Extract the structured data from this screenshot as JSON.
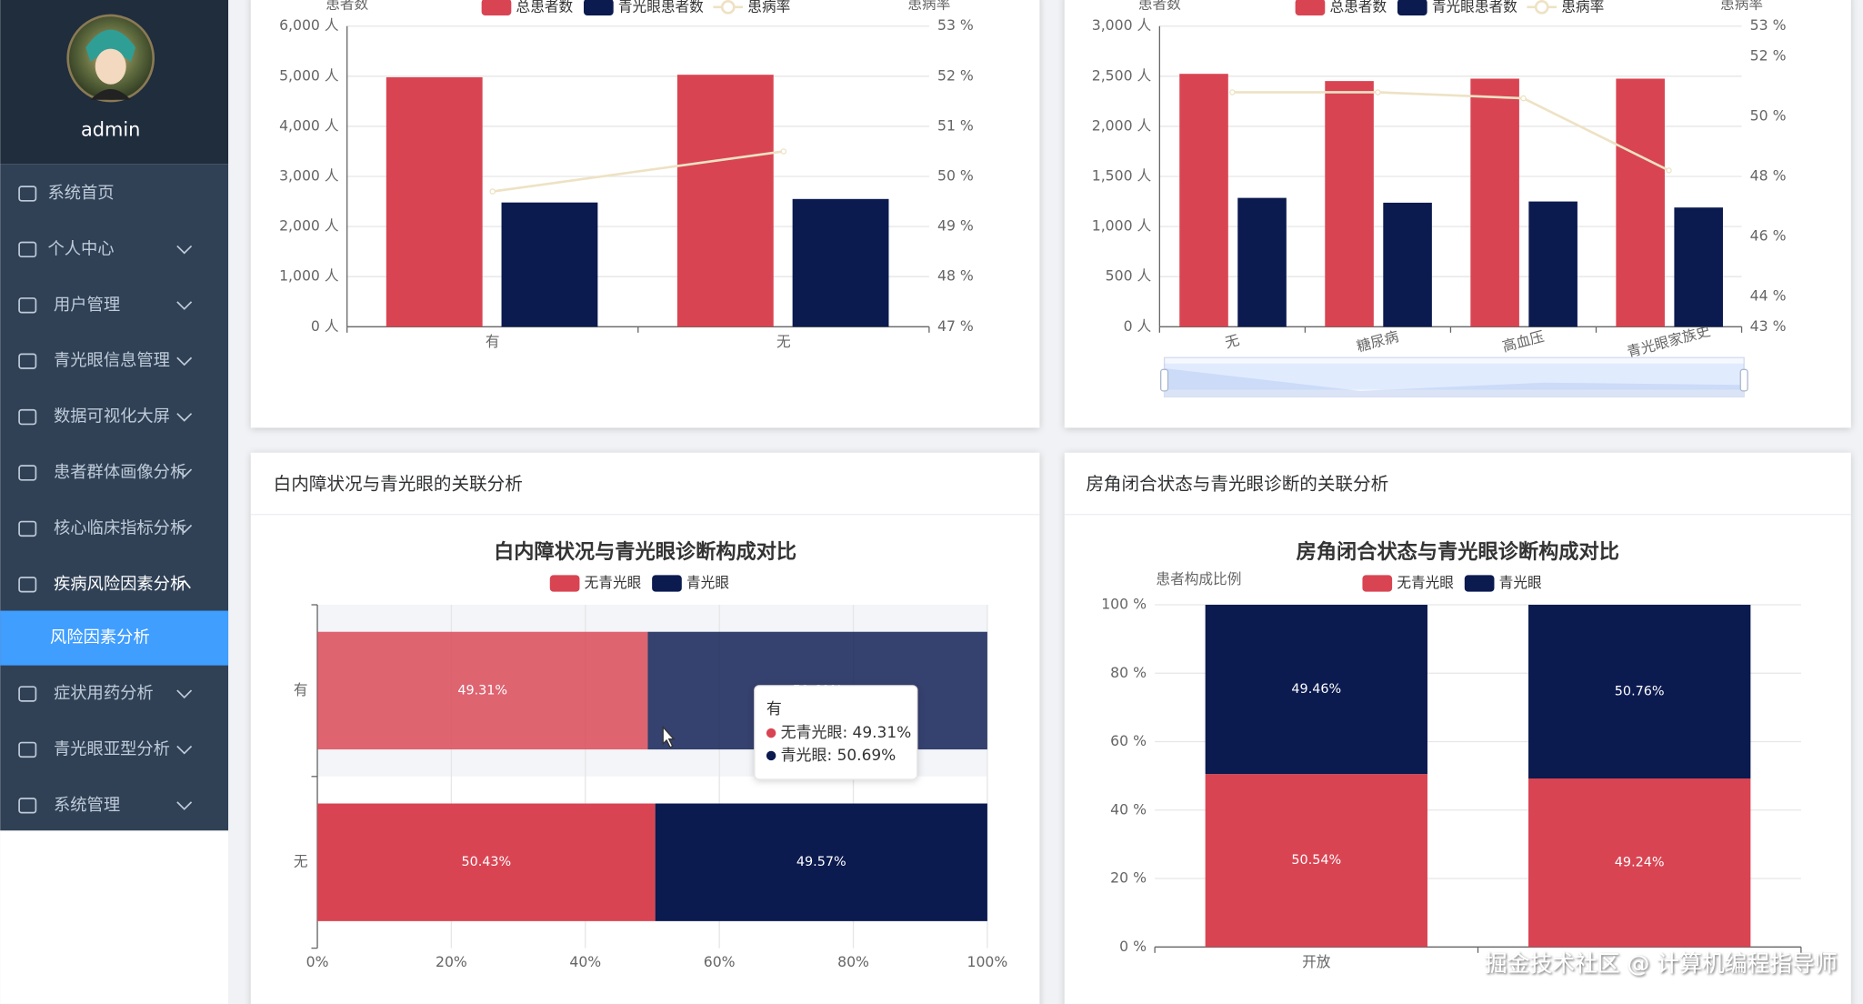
{
  "sidebar": {
    "username": "admin",
    "menu": [
      {
        "label": "系统首页"
      },
      {
        "label": "个人中心"
      },
      {
        "label": "用户管理"
      },
      {
        "label": "青光眼信息管理"
      },
      {
        "label": "数据可视化大屏"
      },
      {
        "label": "患者群体画像分析"
      },
      {
        "label": "核心临床指标分析"
      },
      {
        "label": "疾病风险因素分析",
        "children": [
          {
            "label": "风险因素分析"
          }
        ]
      },
      {
        "label": "症状用药分析"
      },
      {
        "label": "青光眼亚型分析"
      },
      {
        "label": "系统管理"
      }
    ]
  },
  "watermark": "掘金技术社区 @ 计算机编程指导师",
  "chart_data": [
    {
      "type": "bar",
      "y_axis_name": "患者数",
      "y2_axis_name": "患病率",
      "categories": [
        "有",
        "无"
      ],
      "series": [
        {
          "name": "总患者数",
          "color": "#d94452",
          "values": [
            4980,
            5030
          ]
        },
        {
          "name": "青光眼患者数",
          "color": "#0b1a4f",
          "values": [
            2480,
            2550
          ]
        },
        {
          "name": "患病率",
          "type": "line",
          "axis": "y2",
          "color": "#eee2c4",
          "values": [
            49.7,
            50.5
          ]
        }
      ],
      "ylim": [
        0,
        6000
      ],
      "yticks": [
        {
          "value": 0,
          "label": "0 人"
        },
        {
          "value": 1000,
          "label": "1,000 人"
        },
        {
          "value": 2000,
          "label": "2,000 人"
        },
        {
          "value": 3000,
          "label": "3,000 人"
        },
        {
          "value": 4000,
          "label": "4,000 人"
        },
        {
          "value": 5000,
          "label": "5,000 人"
        },
        {
          "value": 6000,
          "label": "6,000 人"
        }
      ],
      "y2lim": [
        47,
        53
      ],
      "y2ticks": [
        {
          "value": 47,
          "label": "47 %"
        },
        {
          "value": 48,
          "label": "48 %"
        },
        {
          "value": 49,
          "label": "49 %"
        },
        {
          "value": 50,
          "label": "50 %"
        },
        {
          "value": 51,
          "label": "51 %"
        },
        {
          "value": 52,
          "label": "52 %"
        },
        {
          "value": 53,
          "label": "53 %"
        }
      ],
      "grid": true
    },
    {
      "type": "bar",
      "y_axis_name": "患者数",
      "y2_axis_name": "患病率",
      "categories": [
        "无",
        "糖尿病",
        "高血压",
        "青光眼家族史"
      ],
      "series": [
        {
          "name": "总患者数",
          "color": "#d94452",
          "values": [
            2524,
            2452,
            2476,
            2476
          ]
        },
        {
          "name": "青光眼患者数",
          "color": "#0b1a4f",
          "values": [
            1286,
            1238,
            1250,
            1190
          ]
        },
        {
          "name": "患病率",
          "type": "line",
          "axis": "y2",
          "color": "#eee2c4",
          "values": [
            50.8,
            50.8,
            50.6,
            48.2
          ]
        }
      ],
      "ylim": [
        0,
        3000
      ],
      "yticks": [
        {
          "value": 0,
          "label": "0 人"
        },
        {
          "value": 500,
          "label": "500 人"
        },
        {
          "value": 1000,
          "label": "1,000 人"
        },
        {
          "value": 1500,
          "label": "1,500 人"
        },
        {
          "value": 2000,
          "label": "2,000 人"
        },
        {
          "value": 2500,
          "label": "2,500 人"
        },
        {
          "value": 3000,
          "label": "3,000 人"
        }
      ],
      "y2lim": [
        43,
        53
      ],
      "y2ticks": [
        {
          "value": 43,
          "label": "43 %"
        },
        {
          "value": 44,
          "label": "44 %"
        },
        {
          "value": 46,
          "label": "46 %"
        },
        {
          "value": 48,
          "label": "48 %"
        },
        {
          "value": 50,
          "label": "50 %"
        },
        {
          "value": 52,
          "label": "52 %"
        },
        {
          "value": 53,
          "label": "53 %"
        }
      ],
      "grid": true,
      "data_zoom": true
    },
    {
      "type": "bar",
      "orientation": "horizontal",
      "stacked": true,
      "card_title": "白内障状况与青光眼的关联分析",
      "title": "白内障状况与青光眼诊断构成对比",
      "categories": [
        "有",
        "无"
      ],
      "series": [
        {
          "name": "无青光眼",
          "color": "#d94452",
          "values": [
            49.31,
            50.43
          ],
          "value_labels": [
            "49.31%",
            "50.43%"
          ]
        },
        {
          "name": "青光眼",
          "color": "#0b1a4f",
          "values": [
            50.69,
            49.57
          ],
          "value_labels": [
            "50.69%",
            "49.57%"
          ]
        }
      ],
      "xlim": [
        0,
        100
      ],
      "xticks": [
        {
          "value": 0,
          "label": "0%"
        },
        {
          "value": 20,
          "label": "20%"
        },
        {
          "value": 40,
          "label": "40%"
        },
        {
          "value": 60,
          "label": "60%"
        },
        {
          "value": 80,
          "label": "80%"
        },
        {
          "value": 100,
          "label": "100%"
        }
      ],
      "grid": true,
      "tooltip": {
        "title": "有",
        "lines": [
          "无青光眼: 49.31%",
          "青光眼: 50.69%"
        ]
      }
    },
    {
      "type": "bar",
      "stacked": true,
      "card_title": "房角闭合状态与青光眼诊断的关联分析",
      "title": "房角闭合状态与青光眼诊断构成对比",
      "y_axis_name": "患者构成比例",
      "categories": [
        "开放",
        null
      ],
      "series": [
        {
          "name": "无青光眼",
          "color": "#d94452",
          "values": [
            50.54,
            49.24
          ],
          "value_labels": [
            "50.54%",
            "49.24%"
          ]
        },
        {
          "name": "青光眼",
          "color": "#0b1a4f",
          "values": [
            49.46,
            50.76
          ],
          "value_labels": [
            "49.46%",
            "50.76%"
          ]
        }
      ],
      "ylim": [
        0,
        100
      ],
      "yticks": [
        {
          "value": 0,
          "label": "0 %"
        },
        {
          "value": 20,
          "label": "20 %"
        },
        {
          "value": 40,
          "label": "40 %"
        },
        {
          "value": 60,
          "label": "60 %"
        },
        {
          "value": 80,
          "label": "80 %"
        },
        {
          "value": 100,
          "label": "100 %"
        }
      ],
      "grid": true
    }
  ]
}
